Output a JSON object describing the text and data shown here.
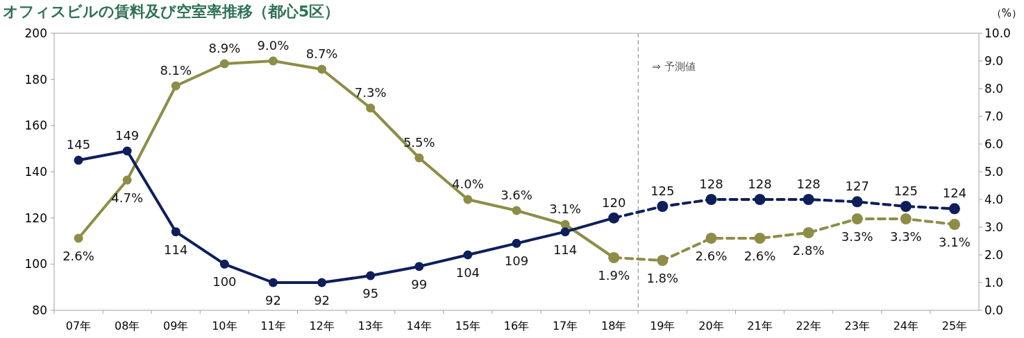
{
  "chart_data": {
    "type": "line",
    "title": "オフィスビルの賃料及び空室率推移（都心5区）",
    "y2label": "（%）",
    "categories": [
      "07年",
      "08年",
      "09年",
      "10年",
      "11年",
      "12年",
      "13年",
      "14年",
      "15年",
      "16年",
      "17年",
      "18年",
      "19年",
      "20年",
      "21年",
      "22年",
      "23年",
      "24年",
      "25年"
    ],
    "series": [
      {
        "color": "#0e1e5b",
        "line_style": "solid",
        "values": [
          145,
          149,
          114,
          100,
          92,
          92,
          95,
          99,
          104,
          109,
          114,
          120,
          null,
          null,
          null,
          null,
          null,
          null,
          null
        ],
        "value_labels": [
          "145",
          "149",
          "114",
          "100",
          "92",
          "92",
          "95",
          "99",
          "104",
          "109",
          "114",
          "120",
          null,
          null,
          null,
          null,
          null,
          null,
          null
        ]
      },
      {
        "color": "#0e1e5b",
        "line_style": "dashed",
        "values": [
          null,
          null,
          null,
          null,
          null,
          null,
          null,
          null,
          null,
          null,
          null,
          120,
          125,
          128,
          128,
          128,
          127,
          125,
          124
        ],
        "value_labels": [
          null,
          null,
          null,
          null,
          null,
          null,
          null,
          null,
          null,
          null,
          null,
          null,
          "125",
          "128",
          "128",
          "128",
          "127",
          "125",
          "124"
        ]
      },
      {
        "color": "#8e8d47",
        "line_style": "solid",
        "axis": "y2",
        "values": [
          2.6,
          4.7,
          8.1,
          8.9,
          9.0,
          8.7,
          7.3,
          5.5,
          4.0,
          3.6,
          3.1,
          1.9,
          null,
          null,
          null,
          null,
          null,
          null,
          null
        ],
        "value_labels": [
          "2.6%",
          "4.7%",
          "8.1%",
          "8.9%",
          "9.0%",
          "8.7%",
          "7.3%",
          "5.5%",
          "4.0%",
          "3.6%",
          "3.1%",
          "1.9%",
          null,
          null,
          null,
          null,
          null,
          null,
          null
        ]
      },
      {
        "color": "#8e8d47",
        "line_style": "dashed",
        "axis": "y2",
        "values": [
          null,
          null,
          null,
          null,
          null,
          null,
          null,
          null,
          null,
          null,
          null,
          1.9,
          1.8,
          2.6,
          2.6,
          2.8,
          3.3,
          3.3,
          3.1
        ],
        "value_labels": [
          null,
          null,
          null,
          null,
          null,
          null,
          null,
          null,
          null,
          null,
          null,
          null,
          "1.8%",
          "2.6%",
          "2.6%",
          "2.8%",
          "3.3%",
          "3.3%",
          "3.1%"
        ]
      }
    ],
    "ylim": [
      80,
      200
    ],
    "yticks": [
      80,
      100,
      120,
      140,
      160,
      180,
      200
    ],
    "y2lim": [
      0,
      10
    ],
    "y2ticks": [
      {
        "value": 0,
        "label": "0.0"
      },
      {
        "value": 1,
        "label": "1.0"
      },
      {
        "value": 2,
        "label": "2.0"
      },
      {
        "value": 3,
        "label": "3.0"
      },
      {
        "value": 4,
        "label": "4.0"
      },
      {
        "value": 5,
        "label": "5.0"
      },
      {
        "value": 6,
        "label": "6.0"
      },
      {
        "value": 7,
        "label": "7.0"
      },
      {
        "value": 8,
        "label": "8.0"
      },
      {
        "value": 9,
        "label": "9.0"
      },
      {
        "value": 10,
        "label": "10.0"
      }
    ],
    "annotations": [
      "⇒ 予測値"
    ],
    "marker": "circle",
    "grid": false
  }
}
